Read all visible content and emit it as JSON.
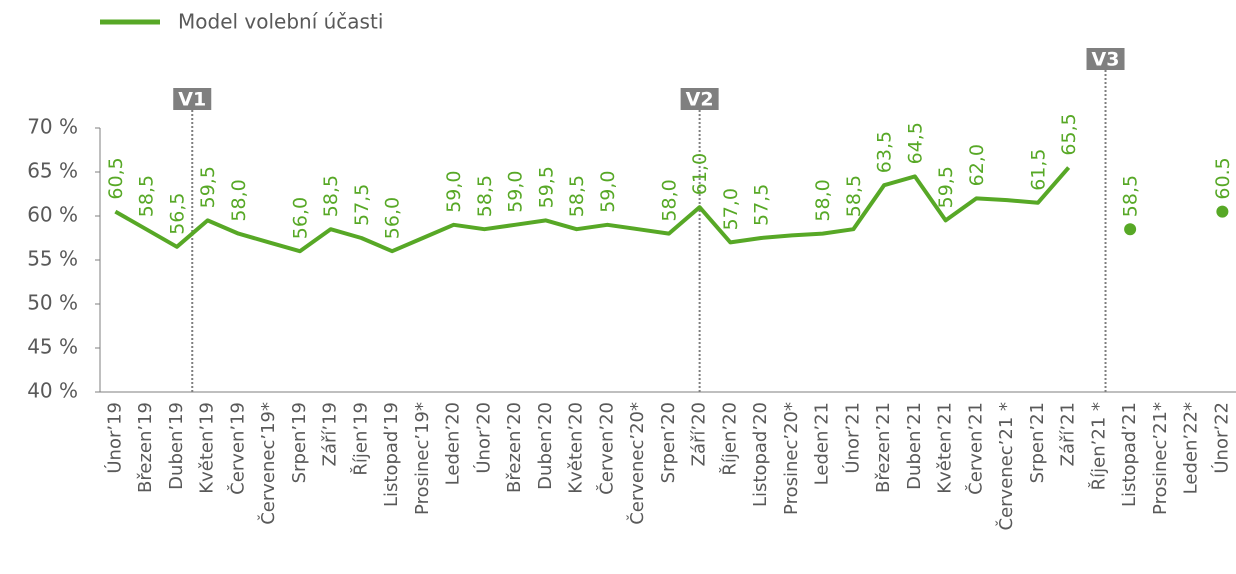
{
  "chart_data": {
    "type": "line",
    "categories": [
      "Únor’19",
      "Březen’19",
      "Duben’19",
      "Květen’19",
      "Červen’19",
      "Červenec’19*",
      "Srpen’19",
      "Září’19",
      "Říjen’19",
      "Listopad’19",
      "Prosinec’19*",
      "Leden’20",
      "Únor’20",
      "Březen’20",
      "Duben’20",
      "Květen’20",
      "Červen’20",
      "Červenec’20*",
      "Srpen’20",
      "Září’20",
      "Říjen’20",
      "Listopad’20",
      "Prosinec’20*",
      "Leden’21",
      "Únor’21",
      "Březen’21",
      "Duben’21",
      "Květen’21",
      "Červen’21",
      "Červenec’21 *",
      "Srpen’21",
      "Září’21",
      "Říjen’21 *",
      "Listopad’21",
      "Prosinec’21*",
      "Leden’22*",
      "Únor’22"
    ],
    "series": [
      {
        "name": "Model volební účasti",
        "color": "#57a826",
        "values": [
          60.5,
          58.5,
          56.5,
          59.5,
          58.0,
          57.0,
          56.0,
          58.5,
          57.5,
          56.0,
          57.5,
          59.0,
          58.5,
          59.0,
          59.5,
          58.5,
          59.0,
          58.5,
          58.0,
          61.0,
          57.0,
          57.5,
          57.8,
          58.0,
          58.5,
          63.5,
          64.5,
          59.5,
          62.0,
          61.8,
          61.5,
          65.5,
          null,
          null,
          null,
          null,
          null
        ],
        "value_labels": [
          "60,5",
          "58,5",
          "56,5",
          "59,5",
          "58,0",
          null,
          "56,0",
          "58,5",
          "57,5",
          "56,0",
          null,
          "59,0",
          "58,5",
          "59,0",
          "59,5",
          "58,5",
          "59,0",
          null,
          "58,0",
          "61,0",
          "57,0",
          "57,5",
          null,
          "58,0",
          "58,5",
          "63,5",
          "64,5",
          "59,5",
          "62,0",
          null,
          "61,5",
          "65,5",
          null,
          null,
          null,
          null,
          null
        ]
      },
      {
        "color": "#57a826",
        "values": [
          null,
          null,
          null,
          null,
          null,
          null,
          null,
          null,
          null,
          null,
          null,
          null,
          null,
          null,
          null,
          null,
          null,
          null,
          null,
          null,
          null,
          null,
          null,
          null,
          null,
          null,
          null,
          null,
          null,
          null,
          null,
          null,
          null,
          58.5,
          null,
          null,
          60.5
        ],
        "value_labels": [
          null,
          null,
          null,
          null,
          null,
          null,
          null,
          null,
          null,
          null,
          null,
          null,
          null,
          null,
          null,
          null,
          null,
          null,
          null,
          null,
          null,
          null,
          null,
          null,
          null,
          null,
          null,
          null,
          null,
          null,
          null,
          null,
          null,
          "58,5",
          null,
          null,
          "60.5"
        ]
      }
    ],
    "annotations": [
      "V1",
      "V2",
      "V3"
    ],
    "ylim": [
      40,
      70
    ],
    "yticks": [
      {
        "value": 40,
        "label": "40 %"
      },
      {
        "value": 45,
        "label": "45 %"
      },
      {
        "value": 50,
        "label": "50 %"
      },
      {
        "value": 55,
        "label": "55 %"
      },
      {
        "value": 60,
        "label": "60 %"
      },
      {
        "value": 65,
        "label": "65 %"
      },
      {
        "value": 70,
        "label": "70 %"
      }
    ]
  }
}
